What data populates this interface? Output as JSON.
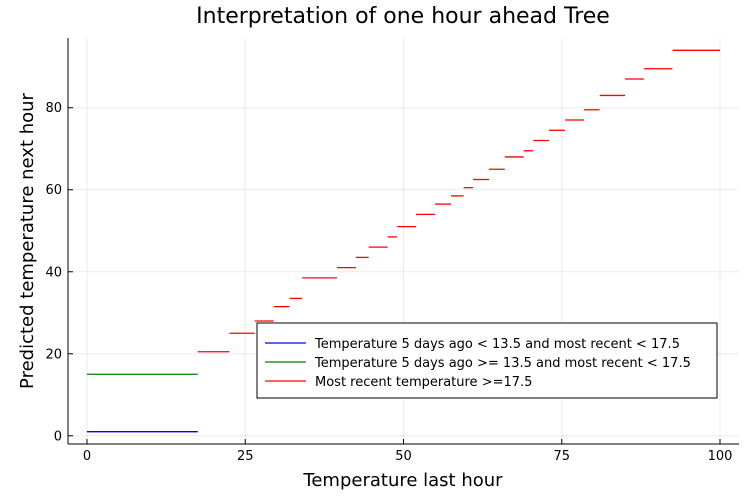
{
  "chart_data": {
    "type": "line",
    "title": "Interpretation of one hour ahead Tree",
    "xlabel": "Temperature last hour",
    "ylabel": "Predicted temperature next hour",
    "xlim": [
      -3,
      103
    ],
    "ylim": [
      -2,
      97
    ],
    "x_ticks": [
      0,
      25,
      50,
      75,
      100
    ],
    "y_ticks": [
      0,
      20,
      40,
      60,
      80
    ],
    "x_tick_labels": [
      "0",
      "25",
      "50",
      "75",
      "100"
    ],
    "y_tick_labels": [
      "0",
      "20",
      "40",
      "60",
      "80"
    ],
    "grid": true,
    "legend_position": "bottom-right",
    "series": [
      {
        "name": "Temperature 5 days ago < 13.5 and most recent < 17.5",
        "color": "#0000ff",
        "segments": [
          {
            "x0": 0,
            "x1": 17.5,
            "y": 1
          }
        ]
      },
      {
        "name": "Temperature 5 days ago >= 13.5 and most recent < 17.5",
        "color": "#008000",
        "segments": [
          {
            "x0": 0,
            "x1": 17.5,
            "y": 15
          }
        ]
      },
      {
        "name": "Most recent temperature >=17.5",
        "color": "#ff0000",
        "segments": [
          {
            "x0": 17.5,
            "x1": 22.5,
            "y": 20.5
          },
          {
            "x0": 22.5,
            "x1": 26.5,
            "y": 25
          },
          {
            "x0": 26.5,
            "x1": 29.5,
            "y": 28
          },
          {
            "x0": 29.5,
            "x1": 32,
            "y": 31.5
          },
          {
            "x0": 32,
            "x1": 34,
            "y": 33.5
          },
          {
            "x0": 34,
            "x1": 39.5,
            "y": 38.5
          },
          {
            "x0": 39.5,
            "x1": 42.5,
            "y": 41
          },
          {
            "x0": 42.5,
            "x1": 44.5,
            "y": 43.5
          },
          {
            "x0": 44.5,
            "x1": 47.5,
            "y": 46
          },
          {
            "x0": 47.5,
            "x1": 49,
            "y": 48.5
          },
          {
            "x0": 49,
            "x1": 52,
            "y": 51
          },
          {
            "x0": 52,
            "x1": 55,
            "y": 54
          },
          {
            "x0": 55,
            "x1": 57.5,
            "y": 56.5
          },
          {
            "x0": 57.5,
            "x1": 59.5,
            "y": 58.5
          },
          {
            "x0": 59.5,
            "x1": 61,
            "y": 60.5
          },
          {
            "x0": 61,
            "x1": 63.5,
            "y": 62.5
          },
          {
            "x0": 63.5,
            "x1": 66,
            "y": 65
          },
          {
            "x0": 66,
            "x1": 69,
            "y": 68
          },
          {
            "x0": 69,
            "x1": 70.5,
            "y": 69.5
          },
          {
            "x0": 70.5,
            "x1": 73,
            "y": 72
          },
          {
            "x0": 73,
            "x1": 75.5,
            "y": 74.5
          },
          {
            "x0": 75.5,
            "x1": 78.5,
            "y": 77
          },
          {
            "x0": 78.5,
            "x1": 81,
            "y": 79.5
          },
          {
            "x0": 81,
            "x1": 85,
            "y": 83
          },
          {
            "x0": 85,
            "x1": 88,
            "y": 87
          },
          {
            "x0": 88,
            "x1": 92.5,
            "y": 89.5
          },
          {
            "x0": 92.5,
            "x1": 100,
            "y": 94
          }
        ]
      }
    ]
  }
}
